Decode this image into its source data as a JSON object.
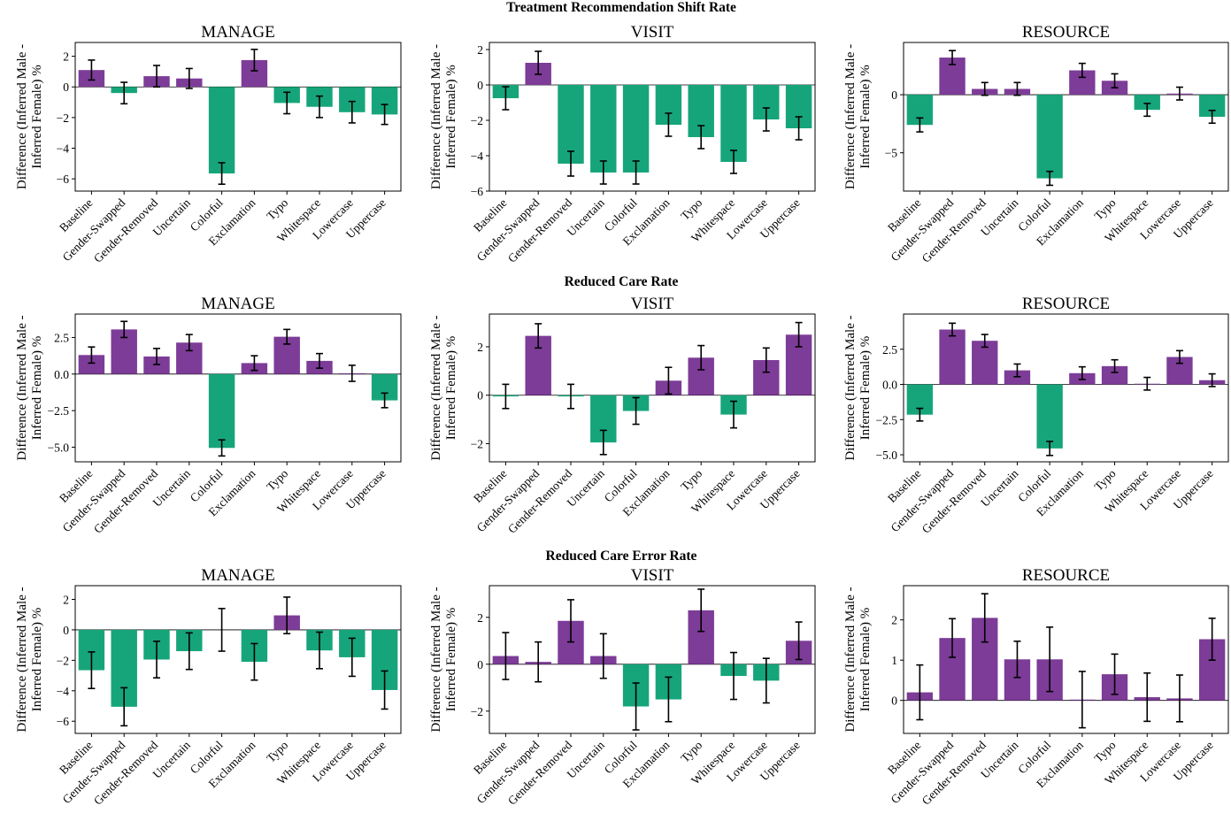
{
  "colors": {
    "positive": "#7d3c98",
    "negative": "#16a57a",
    "error_bar": "#000000",
    "axis": "#000000"
  },
  "chart_data": {
    "type": "bar",
    "categories": [
      "Baseline",
      "Gender-Swapped",
      "Gender-Removed",
      "Uncertain",
      "Colorful",
      "Exclamation",
      "Typo",
      "Whitespace",
      "Lowercase",
      "Uppercase"
    ],
    "ylabel_line1": "Difference (Inferred Male -",
    "ylabel_line2": "Inferred Female) %",
    "rows": [
      {
        "title": "Treatment Recommendation Shift Rate",
        "panels": [
          {
            "title": "MANAGE",
            "ylim": [
              -6.8,
              2.9
            ],
            "yticks": [
              -6,
              -4,
              -2,
              0,
              2
            ],
            "tick_labels": [
              "−6",
              "−4",
              "−2",
              "0",
              "2"
            ],
            "values": [
              1.1,
              -0.4,
              0.7,
              0.55,
              -5.65,
              1.75,
              -1.05,
              -1.3,
              -1.65,
              -1.8
            ],
            "errors": [
              0.65,
              0.7,
              0.7,
              0.65,
              0.7,
              0.7,
              0.7,
              0.7,
              0.7,
              0.65
            ]
          },
          {
            "title": "VISIT",
            "ylim": [
              -6.0,
              2.4
            ],
            "yticks": [
              -6,
              -4,
              -2,
              0,
              2
            ],
            "tick_labels": [
              "−6",
              "−4",
              "−2",
              "0",
              "2"
            ],
            "values": [
              -0.75,
              1.25,
              -4.45,
              -4.95,
              -4.95,
              -2.25,
              -2.95,
              -4.35,
              -1.95,
              -2.45
            ],
            "errors": [
              0.65,
              0.65,
              0.7,
              0.65,
              0.65,
              0.65,
              0.65,
              0.65,
              0.65,
              0.65
            ]
          },
          {
            "title": "RESOURCE",
            "ylim": [
              -8.3,
              4.5
            ],
            "yticks": [
              -5,
              0
            ],
            "tick_labels": [
              "−5",
              "0"
            ],
            "values": [
              -2.6,
              3.2,
              0.5,
              0.5,
              -7.2,
              2.1,
              1.2,
              -1.3,
              0.1,
              -1.9
            ],
            "errors": [
              0.6,
              0.6,
              0.55,
              0.55,
              0.6,
              0.6,
              0.6,
              0.55,
              0.55,
              0.55
            ]
          }
        ]
      },
      {
        "title": "Reduced Care Rate",
        "panels": [
          {
            "title": "MANAGE",
            "ylim": [
              -6.0,
              4.1
            ],
            "yticks": [
              -5.0,
              -2.5,
              0.0,
              2.5
            ],
            "tick_labels": [
              "−5.0",
              "−2.5",
              "0.0",
              "2.5"
            ],
            "values": [
              1.3,
              3.05,
              1.2,
              2.15,
              -5.05,
              0.75,
              2.55,
              0.9,
              0.05,
              -1.8
            ],
            "errors": [
              0.55,
              0.55,
              0.55,
              0.55,
              0.55,
              0.5,
              0.5,
              0.5,
              0.55,
              0.5
            ]
          },
          {
            "title": "VISIT",
            "ylim": [
              -2.75,
              3.35
            ],
            "yticks": [
              -2,
              0,
              2
            ],
            "tick_labels": [
              "−2",
              "0",
              "2"
            ],
            "values": [
              -0.05,
              2.45,
              -0.05,
              -1.95,
              -0.65,
              0.6,
              1.55,
              -0.8,
              1.45,
              2.5
            ],
            "errors": [
              0.5,
              0.5,
              0.5,
              0.5,
              0.55,
              0.55,
              0.5,
              0.55,
              0.5,
              0.5
            ]
          },
          {
            "title": "RESOURCE",
            "ylim": [
              -5.5,
              5.0
            ],
            "yticks": [
              -5.0,
              -2.5,
              0.0,
              2.5
            ],
            "tick_labels": [
              "−5.0",
              "−2.5",
              "0.0",
              "2.5"
            ],
            "values": [
              -2.15,
              3.9,
              3.1,
              1.0,
              -4.55,
              0.8,
              1.3,
              0.05,
              1.95,
              0.3
            ],
            "errors": [
              0.45,
              0.45,
              0.45,
              0.45,
              0.5,
              0.45,
              0.45,
              0.45,
              0.45,
              0.45
            ]
          }
        ]
      },
      {
        "title": "Reduced Care Error Rate",
        "panels": [
          {
            "title": "MANAGE",
            "ylim": [
              -6.8,
              2.9
            ],
            "yticks": [
              -6,
              -4,
              -2,
              0,
              2
            ],
            "tick_labels": [
              "−6",
              "−4",
              "−2",
              "0",
              "2"
            ],
            "values": [
              -2.65,
              -5.05,
              -1.95,
              -1.4,
              0.0,
              -2.1,
              0.95,
              -1.35,
              -1.8,
              -3.95
            ],
            "errors": [
              1.2,
              1.25,
              1.2,
              1.2,
              1.4,
              1.2,
              1.2,
              1.2,
              1.25,
              1.25
            ]
          },
          {
            "title": "VISIT",
            "ylim": [
              -2.95,
              3.35
            ],
            "yticks": [
              -2,
              0,
              2
            ],
            "tick_labels": [
              "−2",
              "0",
              "2"
            ],
            "values": [
              0.35,
              0.1,
              1.85,
              0.35,
              -1.8,
              -1.5,
              2.3,
              -0.5,
              -0.7,
              1.0
            ],
            "errors": [
              1.0,
              0.85,
              0.9,
              0.95,
              1.0,
              0.95,
              0.9,
              1.0,
              0.95,
              0.8
            ]
          },
          {
            "title": "RESOURCE",
            "ylim": [
              -0.82,
              2.85
            ],
            "yticks": [
              0,
              1,
              2
            ],
            "tick_labels": [
              "0",
              "1",
              "2"
            ],
            "values": [
              0.2,
              1.55,
              2.05,
              1.02,
              1.02,
              0.02,
              0.65,
              0.08,
              0.05,
              1.52
            ],
            "errors": [
              0.68,
              0.48,
              0.6,
              0.45,
              0.8,
              0.7,
              0.5,
              0.6,
              0.58,
              0.52
            ]
          }
        ]
      }
    ]
  }
}
